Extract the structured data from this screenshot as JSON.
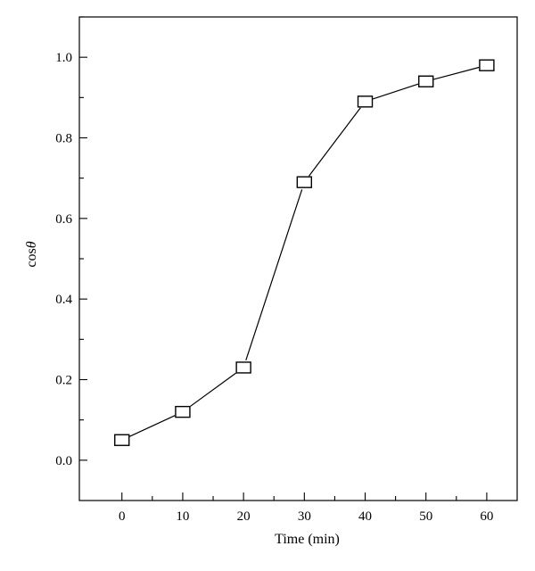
{
  "chart_data": {
    "type": "line",
    "title": "",
    "xlabel": "Time (min)",
    "ylabel": "cosθ",
    "ylabel_parts": {
      "base": "cos",
      "italic": "θ"
    },
    "xlim": [
      -7,
      65
    ],
    "ylim": [
      -0.1,
      1.1
    ],
    "xticks": [
      0,
      10,
      20,
      30,
      40,
      50,
      60
    ],
    "xtick_labels": [
      "0",
      "10",
      "20",
      "30",
      "40",
      "50",
      "60"
    ],
    "yticks": [
      0.0,
      0.2,
      0.4,
      0.6,
      0.8,
      1.0
    ],
    "ytick_labels": [
      "0.0",
      "0.2",
      "0.4",
      "0.6",
      "0.8",
      "1.0"
    ],
    "grid": false,
    "marker": "open-square",
    "series": [
      {
        "x": [
          0,
          10,
          20,
          30,
          40,
          50,
          60
        ],
        "values": [
          0.05,
          0.12,
          0.23,
          0.69,
          0.89,
          0.94,
          0.98
        ]
      }
    ]
  }
}
